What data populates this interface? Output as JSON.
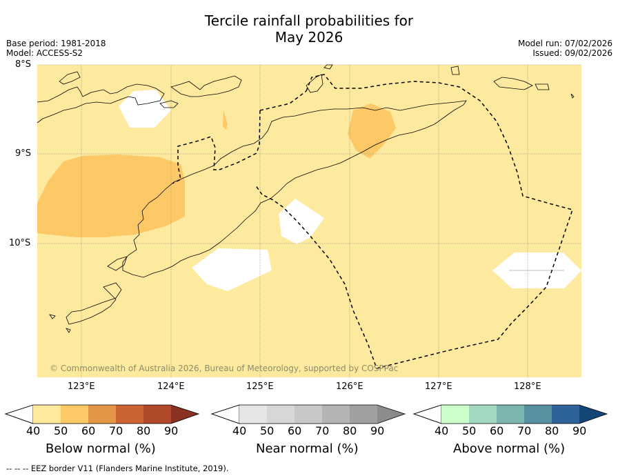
{
  "title_line1": "Tercile rainfall probabilities for",
  "title_line2": "May 2026",
  "meta_left": [
    "Base period: 1981-2018",
    "Model: ACCESS-S2"
  ],
  "meta_right": [
    "Model run: 07/02/2026",
    "Issued: 09/02/2026"
  ],
  "lat_labels": [
    "8°S",
    "9°S",
    "10°S"
  ],
  "lon_labels": [
    "123°E",
    "124°E",
    "125°E",
    "126°E",
    "127°E",
    "128°E"
  ],
  "copyright": "© Commonwealth of Australia 2026, Bureau of Meteorology, supported by COSPPac",
  "colorbars": [
    {
      "label": "Below normal (%)",
      "ticks": [
        "40",
        "50",
        "60",
        "70",
        "80",
        "90"
      ],
      "colors": [
        "#fee99d",
        "#fdc966",
        "#e39646",
        "#cc6333",
        "#b14a2a",
        "#8a3122"
      ]
    },
    {
      "label": "Near normal (%)",
      "ticks": [
        "40",
        "50",
        "60",
        "70",
        "80",
        "90"
      ],
      "colors": [
        "#e6e6e6",
        "#d7d7d7",
        "#c8c8c8",
        "#b4b4b4",
        "#a0a0a0",
        "#8c8c8c"
      ]
    },
    {
      "label": "Above normal (%)",
      "ticks": [
        "40",
        "50",
        "60",
        "70",
        "80",
        "90"
      ],
      "colors": [
        "#ccffcc",
        "#a2d8bf",
        "#7db5b0",
        "#5790a0",
        "#2d6398",
        "#144577"
      ]
    }
  ],
  "footnote": "--  --  -- EEZ border V11 (Flanders Marine Institute, 2019).",
  "colors": {
    "base_fill": "#feea9f",
    "below_50": "#fdc966",
    "no_signal": "#ffffff",
    "grid": "#8c8c6a"
  }
}
